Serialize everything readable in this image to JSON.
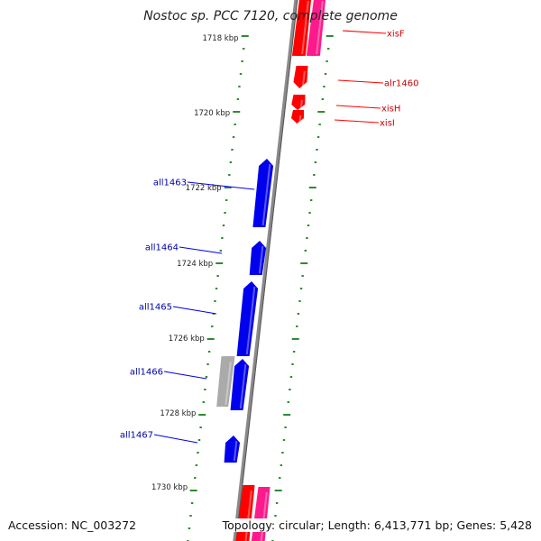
{
  "title": "Nostoc sp. PCC 7120, complete genome",
  "accession_text": "Accession: NC_003272",
  "topology_text": "Topology: circular; Length: 6,413,771 bp; Genes: 5,428",
  "colors": {
    "backbone": "#8a8a8a",
    "tick": "#2e8b2e",
    "reverse_gene": "#0000ee",
    "reverse_label": "#0000aa",
    "forward_gene": "#ff0000",
    "forward_label": "#cc0000",
    "forward_gene_alt": "#ff1a8c",
    "reverse_gene_alt": "#aaaaaa"
  },
  "tick_labels": [
    {
      "kbp": 1718,
      "label": "1718 kbp"
    },
    {
      "kbp": 1720,
      "label": "1720 kbp"
    },
    {
      "kbp": 1722,
      "label": "1722 kbp"
    },
    {
      "kbp": 1724,
      "label": "1724 kbp"
    },
    {
      "kbp": 1726,
      "label": "1726 kbp"
    },
    {
      "kbp": 1728,
      "label": "1728 kbp"
    },
    {
      "kbp": 1730,
      "label": "1730 kbp"
    }
  ],
  "reverse_genes": [
    {
      "name": "all1463"
    },
    {
      "name": "all1464"
    },
    {
      "name": "all1465"
    },
    {
      "name": "all1466"
    },
    {
      "name": "all1467"
    }
  ],
  "forward_genes": [
    {
      "name": "xisF"
    },
    {
      "name": "alr1460"
    },
    {
      "name": "xisH"
    },
    {
      "name": "xisI"
    }
  ]
}
